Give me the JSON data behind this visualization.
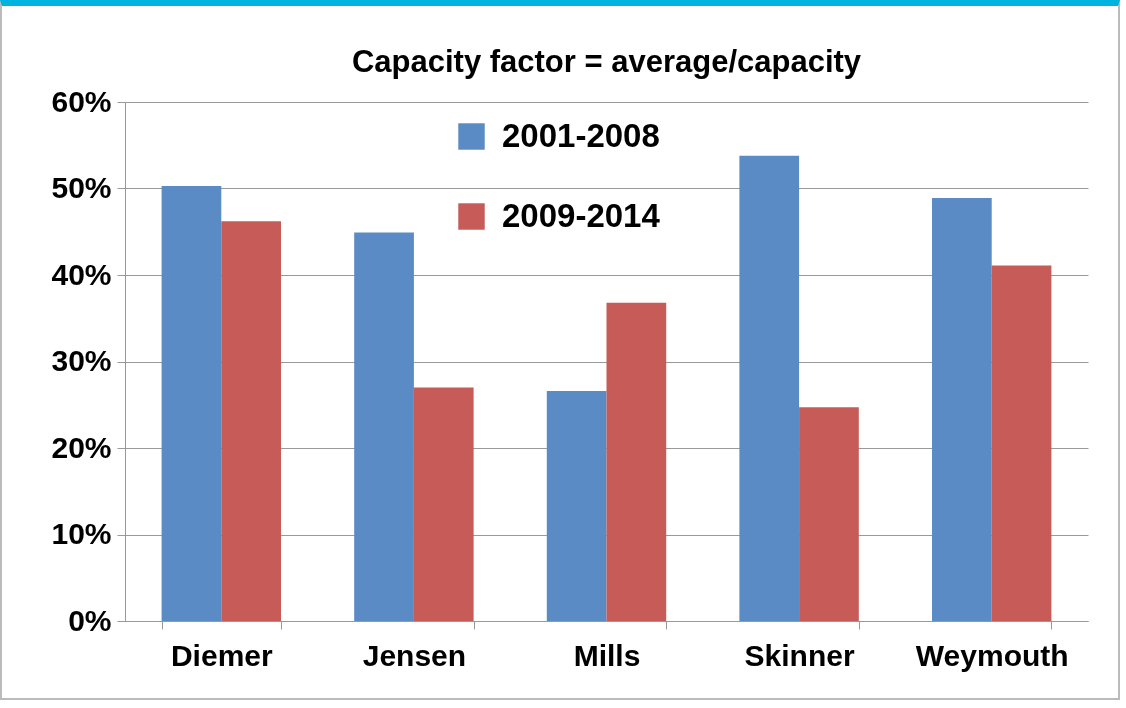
{
  "chart_data": {
    "type": "bar",
    "title": "Capacity factor = average/capacity",
    "categories": [
      "Diemer",
      "Jensen",
      "Mills",
      "Skinner",
      "Weymouth"
    ],
    "series": [
      {
        "name": "2001-2008",
        "color": "#5b8bc4",
        "values": [
          50.3,
          44.9,
          26.6,
          53.8,
          48.9
        ]
      },
      {
        "name": "2009-2014",
        "color": "#c65b58",
        "values": [
          46.2,
          27.0,
          36.8,
          24.7,
          41.1
        ]
      }
    ],
    "ylim": [
      0,
      60
    ],
    "yticks": [
      {
        "value": 0,
        "label": "0%"
      },
      {
        "value": 10,
        "label": "10%"
      },
      {
        "value": 20,
        "label": "20%"
      },
      {
        "value": 30,
        "label": "30%"
      },
      {
        "value": 40,
        "label": "40%"
      },
      {
        "value": 50,
        "label": "50%"
      },
      {
        "value": 60,
        "label": "60%"
      }
    ],
    "grid": "y",
    "legend": "top"
  }
}
